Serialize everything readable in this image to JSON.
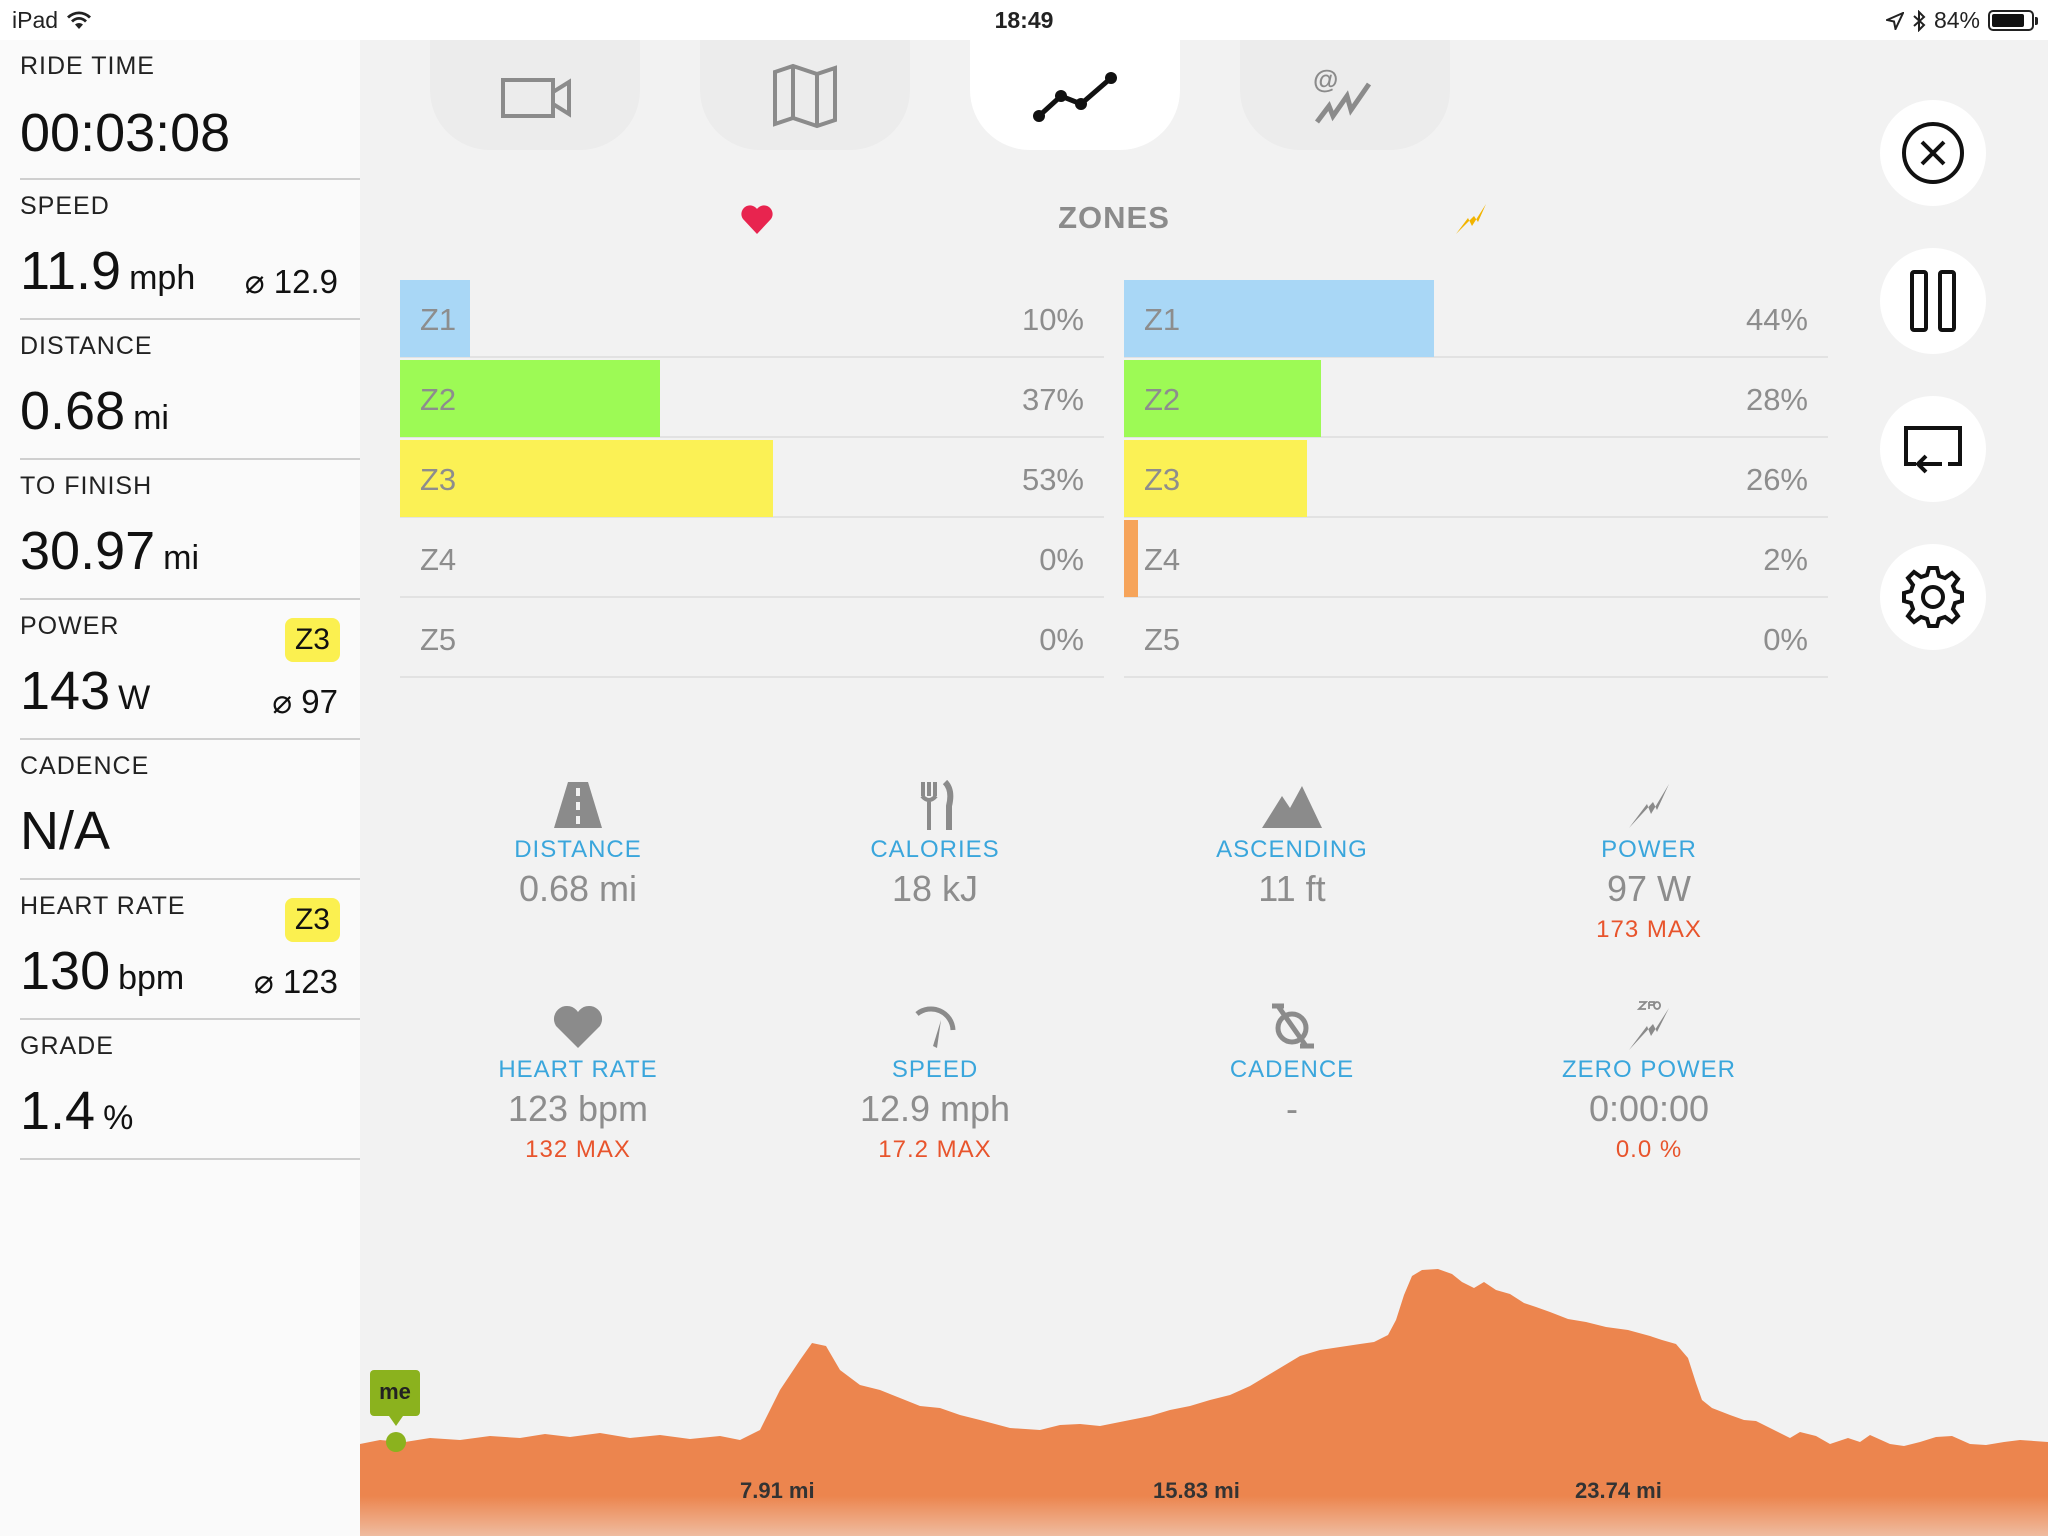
{
  "status_bar": {
    "device": "iPad",
    "time": "18:49",
    "battery": "84%",
    "battery_level": 0.84
  },
  "left_panel": {
    "ride_time": {
      "label": "RIDE TIME",
      "value": "00:03:08"
    },
    "speed": {
      "label": "SPEED",
      "value": "11.9",
      "unit": "mph",
      "avg": "⌀ 12.9"
    },
    "distance": {
      "label": "DISTANCE",
      "value": "0.68",
      "unit": "mi"
    },
    "to_finish": {
      "label": "TO FINISH",
      "value": "30.97",
      "unit": "mi"
    },
    "power": {
      "label": "POWER",
      "value": "143",
      "unit": "W",
      "avg": "⌀ 97",
      "zone": "Z3"
    },
    "cadence": {
      "label": "CADENCE",
      "value": "N/A"
    },
    "heart_rate": {
      "label": "HEART RATE",
      "value": "130",
      "unit": "bpm",
      "avg": "⌀ 123",
      "zone": "Z3"
    },
    "grade": {
      "label": "GRADE",
      "value": "1.4",
      "unit": "%"
    }
  },
  "tabs": [
    {
      "icon": "video-camera-icon",
      "active": false
    },
    {
      "icon": "map-icon",
      "active": false
    },
    {
      "icon": "line-graph-icon",
      "active": true
    },
    {
      "icon": "workout-graph-icon",
      "active": false
    }
  ],
  "zones": {
    "title": "ZONES",
    "heart_rate": [
      {
        "name": "Z1",
        "pct": "10%",
        "fraction": 0.1,
        "color": "#a9d7f6"
      },
      {
        "name": "Z2",
        "pct": "37%",
        "fraction": 0.37,
        "color": "#9dfa55"
      },
      {
        "name": "Z3",
        "pct": "53%",
        "fraction": 0.53,
        "color": "#fbf155"
      },
      {
        "name": "Z4",
        "pct": "0%",
        "fraction": 0.0,
        "color": "#f6a45a"
      },
      {
        "name": "Z5",
        "pct": "0%",
        "fraction": 0.0,
        "color": "#f06a5a"
      }
    ],
    "power": [
      {
        "name": "Z1",
        "pct": "44%",
        "fraction": 0.44,
        "color": "#a9d7f6"
      },
      {
        "name": "Z2",
        "pct": "28%",
        "fraction": 0.28,
        "color": "#9dfa55"
      },
      {
        "name": "Z3",
        "pct": "26%",
        "fraction": 0.26,
        "color": "#fbf155"
      },
      {
        "name": "Z4",
        "pct": "2%",
        "fraction": 0.02,
        "color": "#f6a45a"
      },
      {
        "name": "Z5",
        "pct": "0%",
        "fraction": 0.0,
        "color": "#f06a5a"
      }
    ]
  },
  "stats": {
    "distance": {
      "label": "DISTANCE",
      "value": "0.68 mi"
    },
    "calories": {
      "label": "CALORIES",
      "value": "18 kJ"
    },
    "ascending": {
      "label": "ASCENDING",
      "value": "11 ft"
    },
    "power": {
      "label": "POWER",
      "value": "97 W",
      "max": "173 MAX"
    },
    "heart_rate": {
      "label": "HEART RATE",
      "value": "123 bpm",
      "max": "132 MAX"
    },
    "speed": {
      "label": "SPEED",
      "value": "12.9 mph",
      "max": "17.2 MAX"
    },
    "cadence": {
      "label": "CADENCE",
      "value": "-"
    },
    "zero_power": {
      "label": "ZERO POWER",
      "value": "0:00:00",
      "max": "0.0 %"
    }
  },
  "elevation": {
    "marker": "me",
    "labels": [
      "7.91 mi",
      "15.83 mi",
      "23.74 mi"
    ],
    "color": "#ec854e"
  },
  "colors": {
    "accent_blue": "#3aa6dc",
    "max_red": "#e8542c",
    "zone_badge": "#fbf050",
    "heart": "#e8244f",
    "power_bolt": "#f2b400"
  }
}
